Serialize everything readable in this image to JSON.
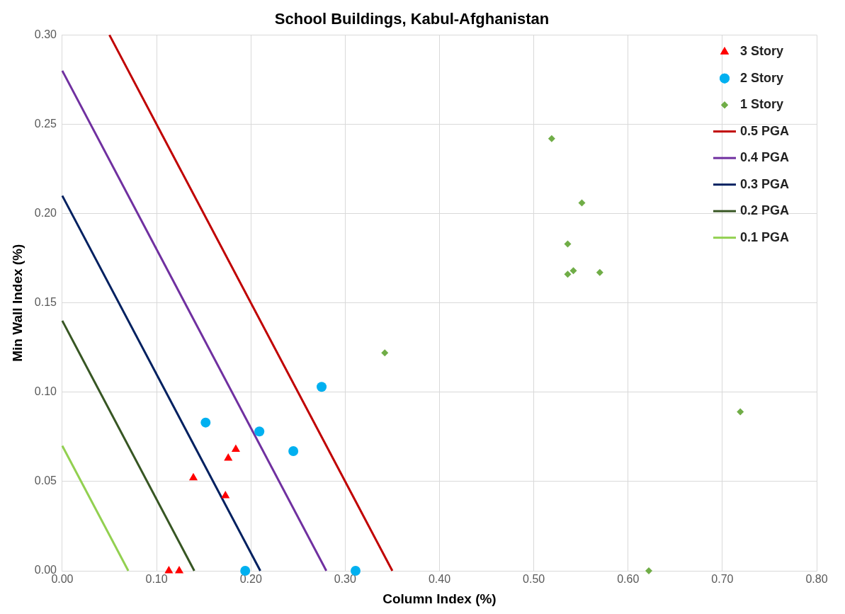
{
  "chart_data": {
    "type": "scatter",
    "title": "School Buildings, Kabul-Afghanistan",
    "xlabel": "Column Index (%)",
    "ylabel": "Min Wall Index (%)",
    "xlim": [
      0,
      0.8
    ],
    "ylim": [
      0,
      0.3
    ],
    "xticks": [
      {
        "value": 0,
        "label": "0.00"
      },
      {
        "value": 0.1,
        "label": "0.10"
      },
      {
        "value": 0.2,
        "label": "0.20"
      },
      {
        "value": 0.3,
        "label": "0.30"
      },
      {
        "value": 0.4,
        "label": "0.40"
      },
      {
        "value": 0.5,
        "label": "0.50"
      },
      {
        "value": 0.6,
        "label": "0.60"
      },
      {
        "value": 0.7,
        "label": "0.70"
      },
      {
        "value": 0.8,
        "label": "0.80"
      }
    ],
    "yticks": [
      {
        "value": 0,
        "label": "0.00"
      },
      {
        "value": 0.05,
        "label": "0.05"
      },
      {
        "value": 0.1,
        "label": "0.10"
      },
      {
        "value": 0.15,
        "label": "0.15"
      },
      {
        "value": 0.2,
        "label": "0.20"
      },
      {
        "value": 0.25,
        "label": "0.25"
      },
      {
        "value": 0.3,
        "label": "0.30"
      }
    ],
    "grid": true,
    "legend": "top right",
    "series": [
      {
        "name": "3 Story",
        "marker": "triangle",
        "color": "#ff0000",
        "x": [
          0.113,
          0.124,
          0.139,
          0.173,
          0.176,
          0.184
        ],
        "values": [
          0,
          0,
          0.052,
          0.042,
          0.063,
          0.068
        ]
      },
      {
        "name": "2 Story",
        "marker": "circle",
        "color": "#00b0f0",
        "x": [
          0.152,
          0.194,
          0.209,
          0.245,
          0.275,
          0.311
        ],
        "values": [
          0.083,
          0,
          0.078,
          0.067,
          0.103,
          0
        ]
      },
      {
        "name": "1 Story",
        "marker": "diamond",
        "color": "#70ad47",
        "x": [
          0.519,
          0.551,
          0.536,
          0.536,
          0.542,
          0.57,
          0.342,
          0.622,
          0.719
        ],
        "values": [
          0.242,
          0.206,
          0.183,
          0.166,
          0.168,
          0.167,
          0.122,
          0,
          0.089
        ]
      },
      {
        "name": "0.5 PGA",
        "type": "line",
        "marker": "none",
        "color": "#c00000",
        "x": [
          0.05,
          0.35
        ],
        "values": [
          0.3,
          0
        ]
      },
      {
        "name": "0.4 PGA",
        "type": "line",
        "marker": "none",
        "color": "#7030a0",
        "x": [
          0,
          0.28
        ],
        "values": [
          0.28,
          0
        ]
      },
      {
        "name": "0.3 PGA",
        "type": "line",
        "marker": "none",
        "color": "#002060",
        "x": [
          0,
          0.21
        ],
        "values": [
          0.21,
          0
        ]
      },
      {
        "name": "0.2 PGA",
        "type": "line",
        "marker": "none",
        "color": "#375623",
        "x": [
          0,
          0.14
        ],
        "values": [
          0.14,
          0
        ]
      },
      {
        "name": "0.1 PGA",
        "type": "line",
        "marker": "none",
        "color": "#92d050",
        "x": [
          0,
          0.07
        ],
        "values": [
          0.07,
          0
        ]
      }
    ]
  }
}
